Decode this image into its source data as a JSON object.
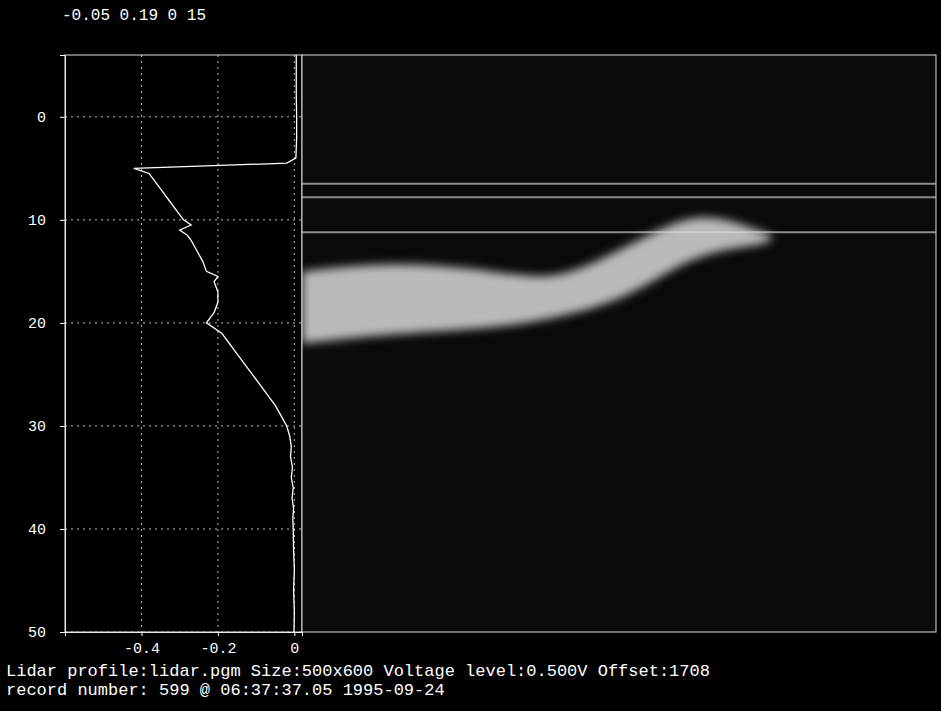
{
  "header": "-0.05 0.19 0 15",
  "footer": [
    "Lidar profile:lidar.pgm Size:500x600 Voltage level:0.500V Offset:1708",
    "record number: 599 @ 06:37:37.05 1995-09-24"
  ],
  "chart_data": [
    {
      "type": "line",
      "y": [
        -6,
        -4,
        -2,
        0,
        2,
        4,
        4.5,
        5,
        5.5,
        6,
        7,
        8,
        9,
        10,
        10.5,
        11,
        11.5,
        12,
        13,
        14,
        15,
        15.5,
        16,
        17,
        18,
        19,
        20,
        21,
        22,
        22.5,
        23,
        24,
        25,
        26,
        27,
        28,
        29,
        30,
        31,
        32,
        33,
        34,
        35,
        36,
        37,
        38,
        39,
        40,
        42,
        44,
        46,
        48,
        50
      ],
      "series": [
        {
          "color": "#ffffff",
          "values": [
            0.005,
            0.005,
            0.005,
            0.006,
            0.006,
            0.004,
            -0.02,
            -0.42,
            -0.38,
            -0.37,
            -0.35,
            -0.33,
            -0.31,
            -0.29,
            -0.27,
            -0.3,
            -0.28,
            -0.27,
            -0.255,
            -0.24,
            -0.23,
            -0.2,
            -0.21,
            -0.2,
            -0.2,
            -0.21,
            -0.23,
            -0.19,
            -0.17,
            -0.16,
            -0.15,
            -0.13,
            -0.11,
            -0.09,
            -0.07,
            -0.05,
            -0.035,
            -0.02,
            -0.012,
            -0.008,
            -0.01,
            -0.005,
            -0.008,
            -0.003,
            -0.006,
            -0.002,
            -0.004,
            -0.003,
            -0.002,
            0,
            -0.002,
            0,
            -0.001
          ]
        }
      ],
      "xlim": [
        -0.6,
        0.02
      ],
      "xticks": [
        -0.4,
        -0.2,
        0
      ],
      "ylim": [
        -6,
        50
      ],
      "yticks": [
        0,
        10,
        20,
        30,
        40,
        50
      ],
      "grid": true
    },
    {
      "type": "area",
      "x": [
        0,
        15,
        31,
        40,
        50,
        59,
        65,
        72,
        74
      ],
      "top": [
        15,
        14,
        15,
        16,
        13,
        10,
        9.5,
        11,
        11.5
      ],
      "bottom": [
        22,
        21,
        20.5,
        19.5,
        18,
        14.5,
        13,
        12.5,
        12
      ],
      "color": "#d9d9d9",
      "reference_lines": [
        6.5,
        7.8,
        11.2
      ],
      "xlim": [
        0,
        100
      ],
      "ylim": [
        -6,
        50
      ],
      "tick_labels": false
    }
  ]
}
